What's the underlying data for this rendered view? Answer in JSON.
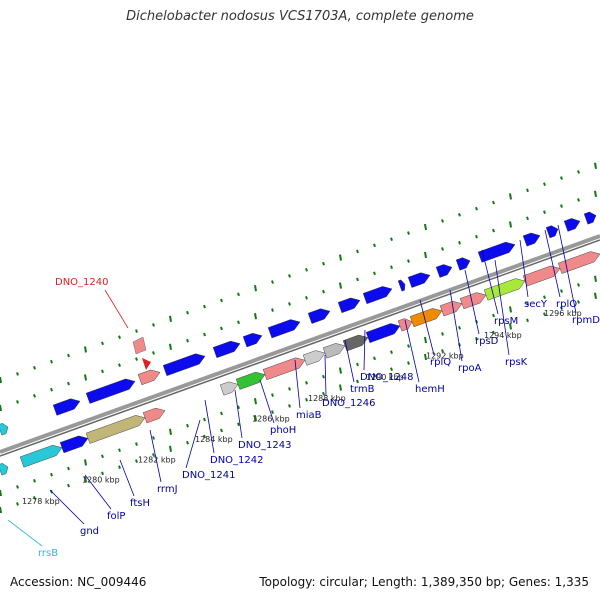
{
  "header": {
    "title": "Dichelobacter nodosus VCS1703A, complete genome"
  },
  "footer": {
    "accession": "Accession: NC_009446",
    "summary": "Topology: circular; Length: 1,389,350 bp; Genes: 1,335"
  },
  "colors": {
    "cds": "#0b0bee",
    "rrna": "#28c8d8",
    "trna": "#f08a8a",
    "backbone": "#888888",
    "ticks": "#137a13",
    "selected": "#e02020"
  },
  "kbp_labels": [
    "1278 kbp",
    "1280 kbp",
    "1282 kbp",
    "1284 kbp",
    "1286 kbp",
    "1288 kbp",
    "1290 kbp",
    "1292 kbp",
    "1294 kbp",
    "1296 kbp"
  ],
  "gene_labels": [
    {
      "text": "rrsB",
      "color": "#30b8e0"
    },
    {
      "text": "gnd",
      "color": "#0000aa"
    },
    {
      "text": "folP",
      "color": "#0000aa"
    },
    {
      "text": "ftsH",
      "color": "#0000aa"
    },
    {
      "text": "rrmJ",
      "color": "#0000aa"
    },
    {
      "text": "DNO_1241",
      "color": "#0000aa"
    },
    {
      "text": "DNO_1242",
      "color": "#0000aa"
    },
    {
      "text": "DNO_1243",
      "color": "#0000aa"
    },
    {
      "text": "phoH",
      "color": "#0000aa"
    },
    {
      "text": "miaB",
      "color": "#0000aa"
    },
    {
      "text": "DNO_1246",
      "color": "#0000aa"
    },
    {
      "text": "trmB",
      "color": "#0000aa"
    },
    {
      "text": "DNO_1248",
      "color": "#0000aa"
    },
    {
      "text": "hemH",
      "color": "#0000aa"
    },
    {
      "text": "rplQ",
      "color": "#0000aa"
    },
    {
      "text": "rpoA",
      "color": "#0000aa"
    },
    {
      "text": "rpsD",
      "color": "#0000aa"
    },
    {
      "text": "rpsK",
      "color": "#0000aa"
    },
    {
      "text": "rpsM",
      "color": "#0000aa"
    },
    {
      "text": "secY",
      "color": "#0000aa"
    },
    {
      "text": "rplO",
      "color": "#0000aa"
    },
    {
      "text": "rpmD",
      "color": "#0000aa"
    }
  ],
  "selected_gene": {
    "text": "DNO_1240",
    "color": "#e02020"
  }
}
